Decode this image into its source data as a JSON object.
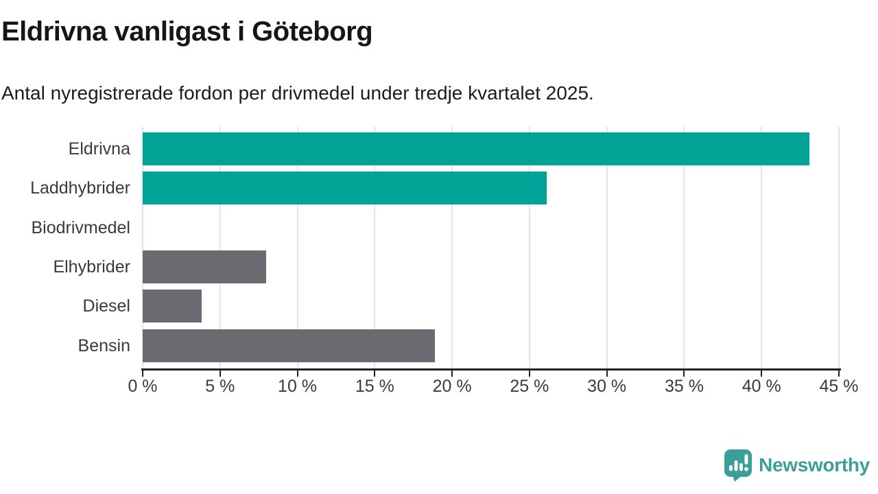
{
  "page": {
    "title": "Eldrivna vanligast i Göteborg",
    "subtitle": "Antal nyregistrerade fordon per drivmedel under tredje kvartalet 2025."
  },
  "chart_data": {
    "type": "bar",
    "orientation": "horizontal",
    "title": "Eldrivna vanligast i Göteborg",
    "subtitle": "Antal nyregistrerade fordon per drivmedel under tredje kvartalet 2025.",
    "categories": [
      "Eldrivna",
      "Laddhybrider",
      "Biodrivmedel",
      "Elhybrider",
      "Diesel",
      "Bensin"
    ],
    "values": [
      43.1,
      26.1,
      0,
      8.0,
      3.8,
      18.9
    ],
    "unit": "%",
    "xlim": [
      0,
      45
    ],
    "x_ticks": [
      0,
      5,
      10,
      15,
      20,
      25,
      30,
      35,
      40,
      45
    ],
    "x_tick_labels": [
      "0 %",
      "5 %",
      "10 %",
      "15 %",
      "20 %",
      "25 %",
      "30 %",
      "35 %",
      "40 %",
      "45 %"
    ],
    "bar_colors": [
      "#00a396",
      "#00a396",
      "#00a396",
      "#6a6a70",
      "#6a6a70",
      "#6a6a70"
    ],
    "grid": true,
    "legend": "none"
  },
  "colors": {
    "accent_teal": "#00a396",
    "bar_gray": "#6a6a70",
    "gridline": "#e4e4e4",
    "axis": "#222222",
    "label_text": "#3a3a3a",
    "title_text": "#161616",
    "logo_teal": "#3c9e99"
  },
  "branding": {
    "logo_text": "Newsworthy",
    "logo_icon": "bar-chart-speech-bubble-icon"
  }
}
